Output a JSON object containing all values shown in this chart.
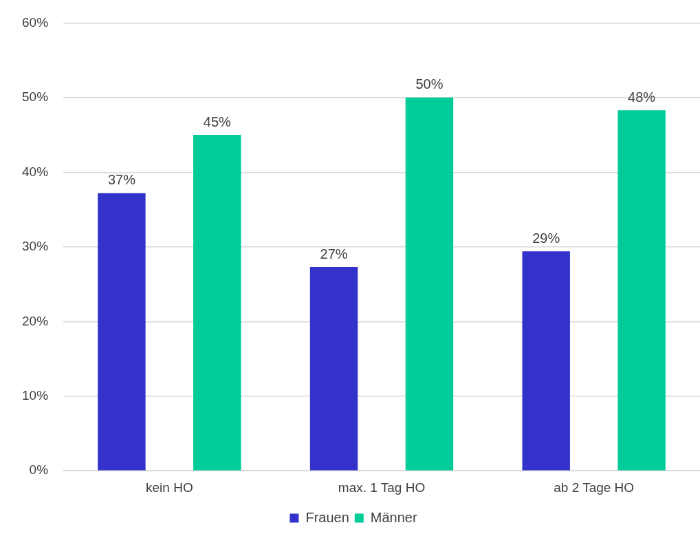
{
  "chart_data": {
    "type": "bar",
    "categories": [
      "kein HO",
      "max. 1 Tag HO",
      "ab 2 Tage HO"
    ],
    "series": [
      {
        "name": "Frauen",
        "color": "#3333cc",
        "values": [
          37.2,
          27.3,
          29.4
        ],
        "value_labels": [
          "37%",
          "27%",
          "29%"
        ]
      },
      {
        "name": "Männer",
        "color": "#00cc99",
        "values": [
          45,
          50,
          48.3
        ],
        "value_labels": [
          "45%",
          "50%",
          "48%"
        ]
      }
    ],
    "ylim": [
      0,
      60
    ],
    "yticks": [
      {
        "value": 0,
        "label": "0%"
      },
      {
        "value": 10,
        "label": "10%"
      },
      {
        "value": 20,
        "label": "20%"
      },
      {
        "value": 30,
        "label": "30%"
      },
      {
        "value": 40,
        "label": "40%"
      },
      {
        "value": 50,
        "label": "50%"
      },
      {
        "value": 60,
        "label": "60%"
      }
    ],
    "grid": "y",
    "legend": "bottom"
  }
}
